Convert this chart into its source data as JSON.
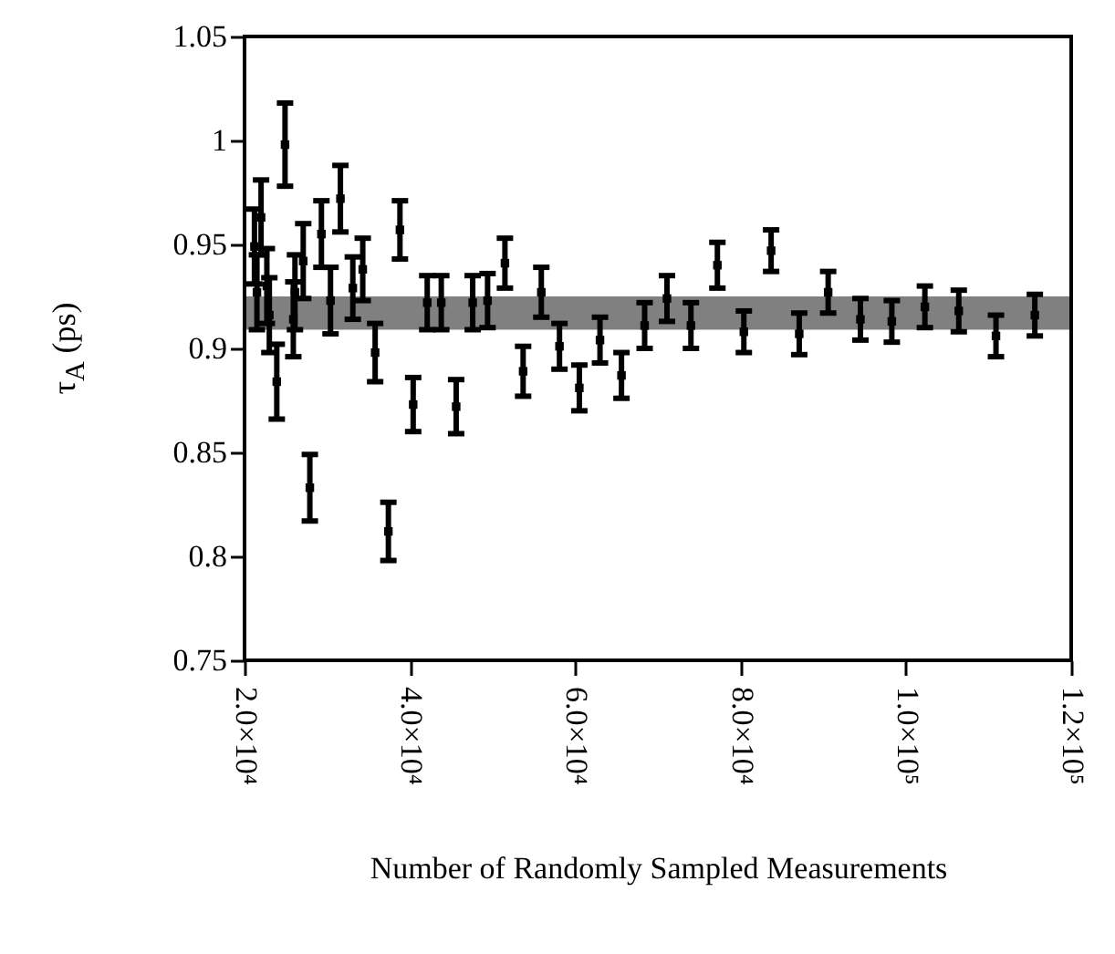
{
  "chart_data": {
    "type": "scatter",
    "xlabel": "Number of Randomly Sampled Measurements",
    "ylabel": "τ$_{A}$ (ps)",
    "xlim": [
      20000,
      120000
    ],
    "xticks": [
      {
        "value": 20000,
        "label": "2.0×10⁴"
      },
      {
        "value": 40000,
        "label": "4.0×10⁴"
      },
      {
        "value": 60000,
        "label": "6.0×10⁴"
      },
      {
        "value": 80000,
        "label": "8.0×10⁴"
      },
      {
        "value": 100000,
        "label": "1.0×10⁵"
      },
      {
        "value": 120000,
        "label": "1.2×10⁵"
      }
    ],
    "ylim": [
      0.75,
      1.05
    ],
    "yticks": [
      0.75,
      0.8,
      0.85,
      0.9,
      0.95,
      1,
      1.05
    ],
    "grid": false,
    "legend": false,
    "marker": "square",
    "bands": [
      {
        "axis": "y",
        "from": 0.909,
        "to": 0.925,
        "color": "#808080"
      }
    ],
    "series": [
      {
        "color": "#000000",
        "x": [
          21200,
          21500,
          22000,
          22700,
          23000,
          23900,
          24900,
          25900,
          26100,
          27100,
          27900,
          29300,
          30400,
          31600,
          33100,
          34300,
          35800,
          37400,
          38800,
          40400,
          42100,
          43800,
          45600,
          47600,
          49400,
          51500,
          53700,
          55900,
          58100,
          60500,
          63000,
          65600,
          68400,
          71100,
          74000,
          77200,
          80400,
          83700,
          87100,
          90600,
          94500,
          98300,
          102300,
          106400,
          110900,
          115600
        ],
        "values": [
          0.949,
          0.927,
          0.963,
          0.93,
          0.916,
          0.884,
          0.998,
          0.914,
          0.927,
          0.942,
          0.833,
          0.955,
          0.923,
          0.972,
          0.929,
          0.938,
          0.898,
          0.812,
          0.957,
          0.873,
          0.922,
          0.922,
          0.872,
          0.922,
          0.923,
          0.941,
          0.889,
          0.927,
          0.901,
          0.881,
          0.904,
          0.887,
          0.911,
          0.924,
          0.911,
          0.94,
          0.908,
          0.947,
          0.907,
          0.927,
          0.914,
          0.913,
          0.92,
          0.918,
          0.906,
          0.916
        ],
        "errors": [
          0.018,
          0.018,
          0.018,
          0.018,
          0.018,
          0.018,
          0.02,
          0.018,
          0.018,
          0.018,
          0.016,
          0.016,
          0.016,
          0.016,
          0.015,
          0.015,
          0.014,
          0.014,
          0.014,
          0.013,
          0.013,
          0.013,
          0.013,
          0.013,
          0.013,
          0.012,
          0.012,
          0.012,
          0.011,
          0.011,
          0.011,
          0.011,
          0.011,
          0.011,
          0.011,
          0.011,
          0.01,
          0.01,
          0.01,
          0.01,
          0.01,
          0.01,
          0.01,
          0.01,
          0.01,
          0.01
        ]
      }
    ]
  }
}
